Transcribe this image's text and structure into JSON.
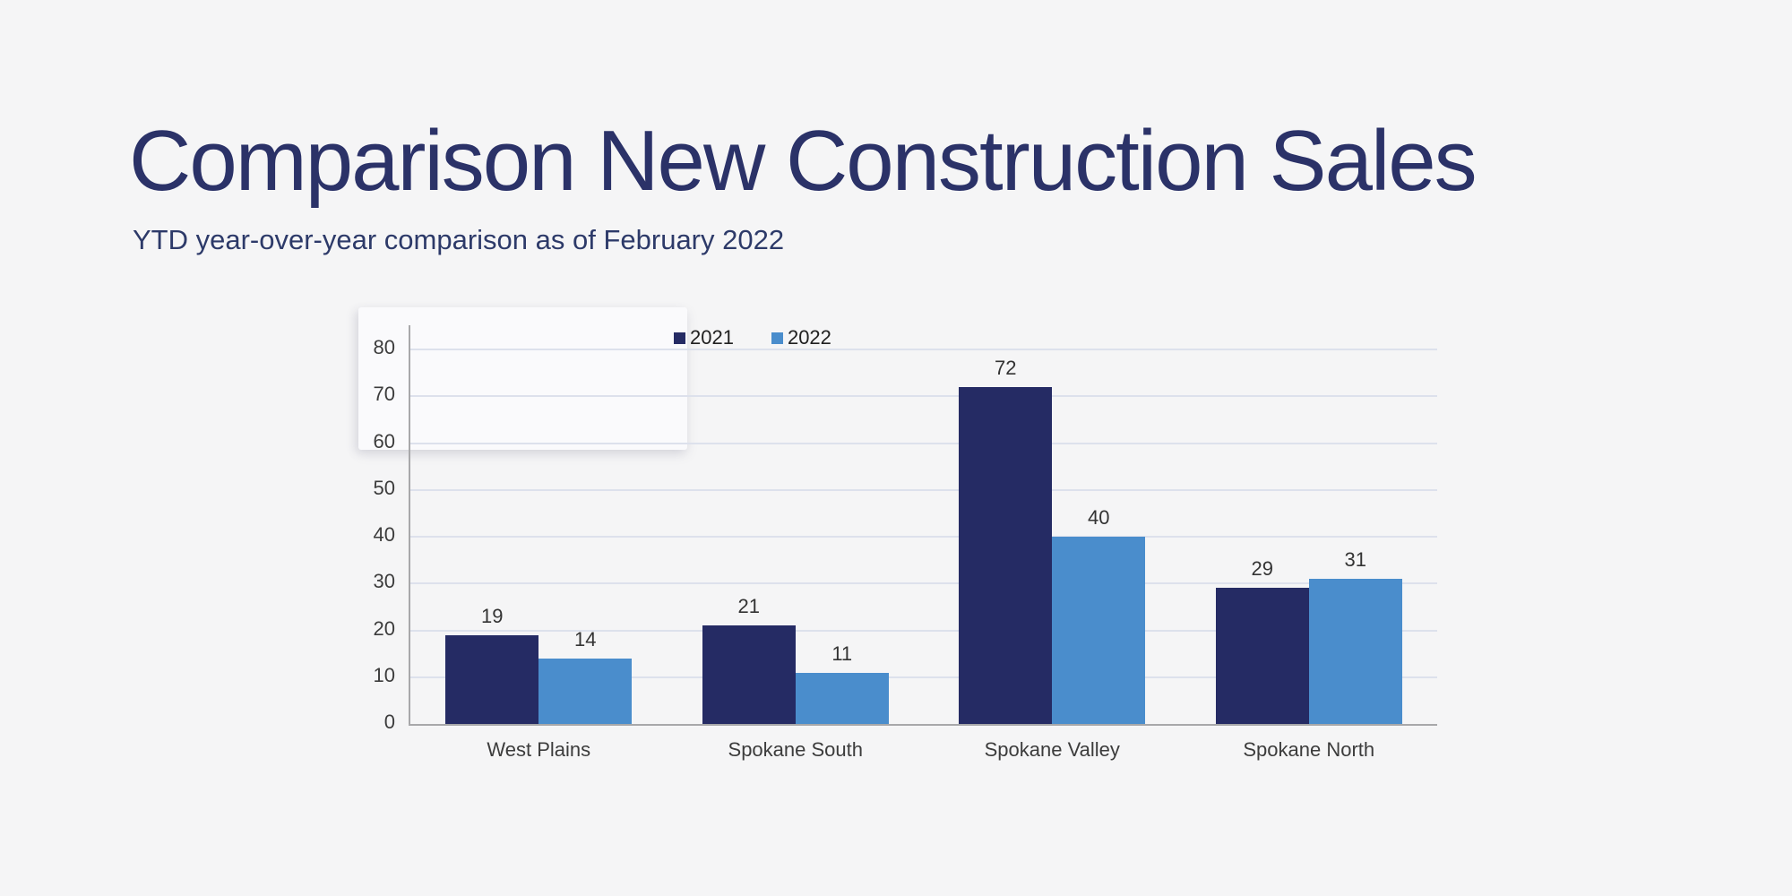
{
  "page": {
    "background_color": "#f5f5f6"
  },
  "header": {
    "title": "Comparison New Construction Sales",
    "subtitle": "YTD year-over-year comparison as of February 2022",
    "title_color": "#2b3268"
  },
  "chart_data": {
    "type": "bar",
    "title": "",
    "xlabel": "",
    "ylabel": "",
    "categories": [
      "West Plains",
      "Spokane South",
      "Spokane Valley",
      "Spokane North"
    ],
    "series": [
      {
        "name": "2021",
        "color": "#252b64",
        "values": [
          19,
          21,
          72,
          29
        ]
      },
      {
        "name": "2022",
        "color": "#4a8dcc",
        "values": [
          14,
          11,
          40,
          31
        ]
      }
    ],
    "ylim": [
      0,
      80
    ],
    "yticks": [
      0,
      10,
      20,
      30,
      40,
      50,
      60,
      70,
      80
    ],
    "grid": true,
    "data_labels": true,
    "legend_position": "top-center"
  }
}
